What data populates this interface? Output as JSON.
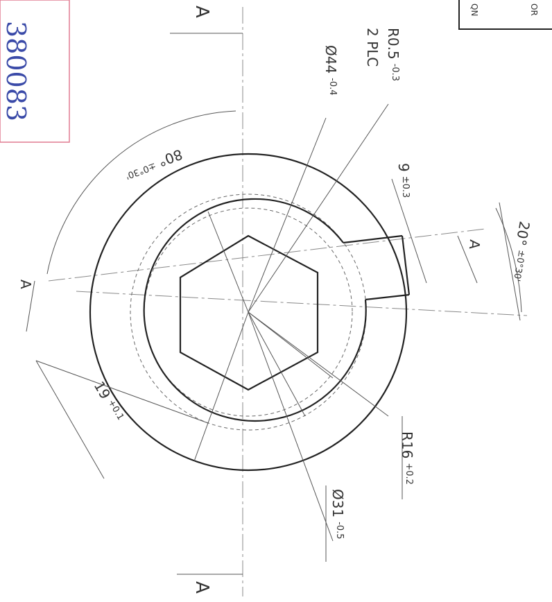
{
  "stamp": {
    "code": "380083"
  },
  "title_box": {
    "lines": [
      "QN",
      "OR"
    ]
  },
  "section_labels": [
    "A",
    "A",
    "A",
    "A"
  ],
  "dimensions": [
    {
      "text": "R0.5",
      "tol": "-0.3"
    },
    {
      "text": "2 PLC"
    },
    {
      "text": "Ø44",
      "tol": "-0.4"
    },
    {
      "text": "80°",
      "tol": "±0°30'"
    },
    {
      "text": "9",
      "tol": "±0.3"
    },
    {
      "text": "20°",
      "tol": "±0°30'"
    },
    {
      "text": "19",
      "tol": "+0.1"
    },
    {
      "text": "R16",
      "tol": "+0.2"
    },
    {
      "text": "Ø31",
      "tol": "-0.5"
    }
  ]
}
